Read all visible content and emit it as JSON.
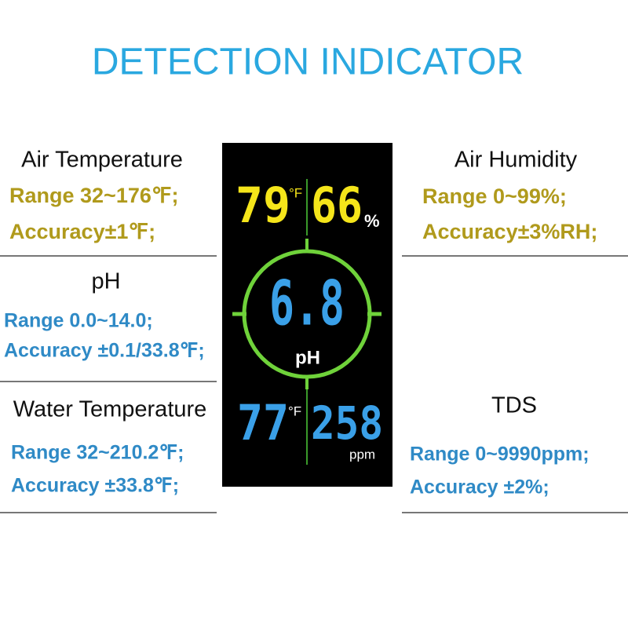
{
  "title": "DETECTION INDICATOR",
  "sections": [
    {
      "name": "Air Temperature",
      "range": "Range 32~176℉;",
      "accuracy": "Accuracy±1℉;"
    },
    {
      "name": "pH",
      "range": "Range 0.0~14.0;",
      "accuracy": "Accuracy ±0.1/33.8℉;"
    },
    {
      "name": "Water Temperature",
      "range": "Range 32~210.2℉;",
      "accuracy": "Accuracy ±33.8℉;"
    },
    {
      "name": "Air Humidity",
      "range": "Range 0~99%;",
      "accuracy": "Accuracy±3%RH;"
    },
    {
      "name": "TDS",
      "range": "Range 0~9990ppm;",
      "accuracy": "Accuracy ±2%;"
    }
  ],
  "display": {
    "air_temp": "79",
    "air_temp_unit": "°F",
    "humidity": "66",
    "humidity_unit": "%",
    "ph": "6.8",
    "ph_unit": "pH",
    "water_temp": "77",
    "water_temp_unit": "°F",
    "tds": "258",
    "tds_unit": "ppm"
  }
}
